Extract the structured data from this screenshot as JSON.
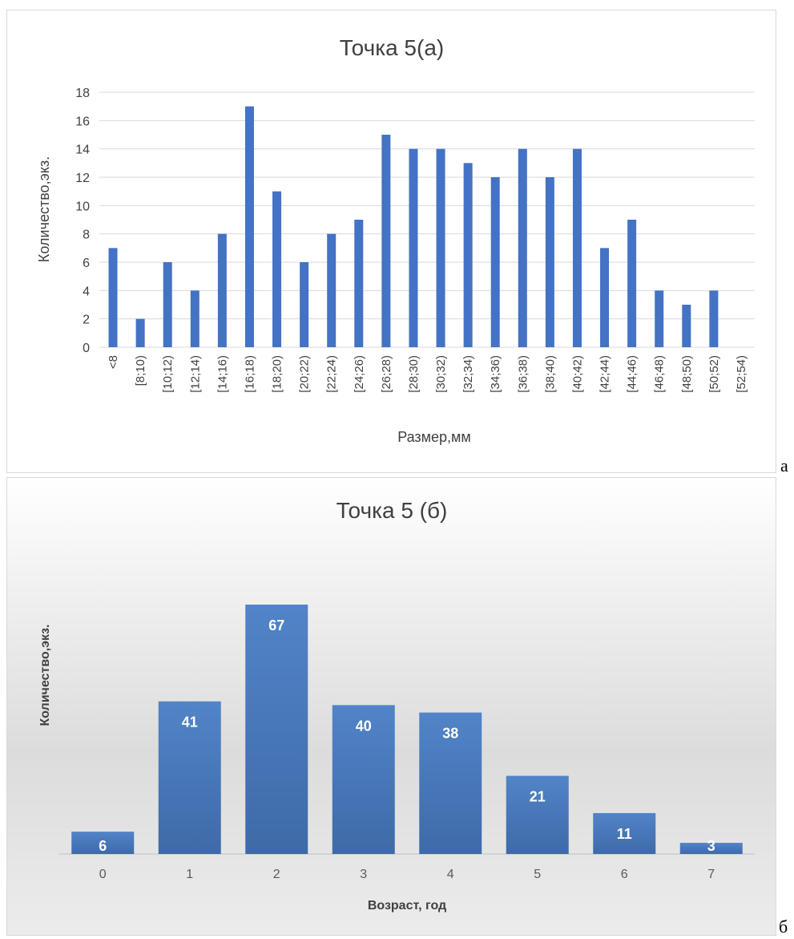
{
  "panel_labels": [
    "а",
    "б"
  ],
  "chart_data": [
    {
      "type": "bar",
      "title": "Точка 5(а)",
      "xlabel": "Размер,мм",
      "ylabel": "Количество,экз.",
      "categories": [
        "<8",
        "[8;10)",
        "[10;12)",
        "[12;14)",
        "[14;16)",
        "[16;18)",
        "[18;20)",
        "[20;22)",
        "[22;24)",
        "[24;26)",
        "[26;28)",
        "[28;30)",
        "[30;32)",
        "[32;34)",
        "[34;36)",
        "[36;38)",
        "[38;40)",
        "[40;42)",
        "[42;44)",
        "[44;46)",
        "[46;48)",
        "[48;50)",
        "[50;52)",
        "[52;54)"
      ],
      "values": [
        7,
        2,
        6,
        4,
        8,
        17,
        11,
        6,
        8,
        9,
        15,
        14,
        14,
        13,
        12,
        14,
        12,
        14,
        7,
        9,
        4,
        3,
        4,
        0
      ],
      "ylim": [
        0,
        18
      ],
      "yticks": [
        0,
        2,
        4,
        6,
        8,
        10,
        12,
        14,
        16,
        18
      ],
      "grid": true,
      "bar_color": "#4472c4"
    },
    {
      "type": "bar",
      "title": "Точка 5 (б)",
      "xlabel": "Возраст, год",
      "ylabel": "Количество,экз.",
      "categories": [
        "0",
        "1",
        "2",
        "3",
        "4",
        "5",
        "6",
        "7"
      ],
      "values": [
        6,
        41,
        67,
        40,
        38,
        21,
        11,
        3
      ],
      "ylim": [
        0,
        70
      ],
      "grid": false,
      "data_labels": true,
      "bar_color": "#4a78bb"
    }
  ]
}
